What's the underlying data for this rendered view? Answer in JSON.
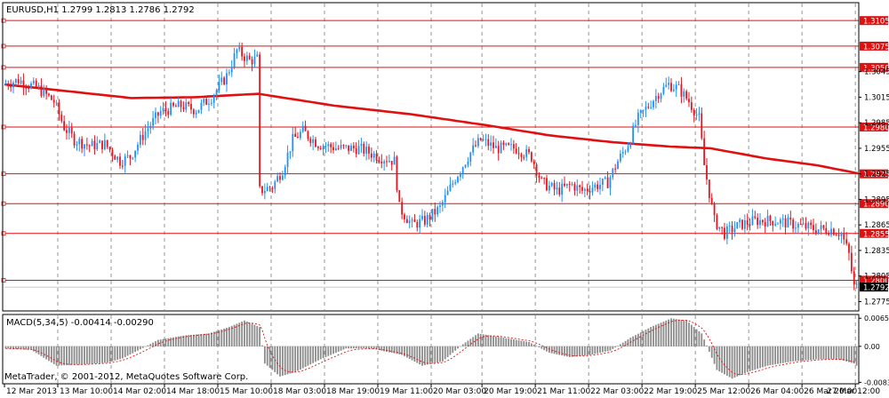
{
  "header": {
    "symbol_info": "EURUSD,H1 1.2799 1.2813 1.2786 1.2792"
  },
  "footer": {
    "copyright": "MetaTrader, © 2001-2012, MetaQuotes Software Corp."
  },
  "colors": {
    "background": "#ffffff",
    "bull_candle": "#1e90ff",
    "bear_candle": "#e8141e",
    "moving_average": "#e01010",
    "hline": "#e01010",
    "grid": "#7a7a7a",
    "macd_hist": "#8c8c8c",
    "macd_signal": "#e01010",
    "price_tag_bg": "#e01010",
    "price_tag_text": "#ffffff",
    "current_tag_bg": "#000000"
  },
  "chart_data": [
    {
      "type": "candlestick",
      "ylim": [
        1.2765,
        1.3125
      ],
      "y_ticks": [
        "1.3045",
        "1.3015",
        "1.2985",
        "1.2955",
        "1.2925",
        "1.2895",
        "1.2865",
        "1.2835",
        "1.2805",
        "1.2775"
      ],
      "x_tick_labels": [
        "12 Mar 2013",
        "13 Mar 10:00",
        "14 Mar 02:00",
        "14 Mar 18:00",
        "15 Mar 10:00",
        "18 Mar 03:00",
        "18 Mar 19:00",
        "19 Mar 11:00",
        "20 Mar 03:00",
        "20 Mar 19:00",
        "21 Mar 11:00",
        "22 Mar 03:00",
        "22 Mar 19:00",
        "25 Mar 12:00",
        "26 Mar 04:00",
        "26 Mar 20:00",
        "27 Mar 12:00"
      ],
      "horizontal_levels": [
        "1.3105",
        "1.3075",
        "1.3050",
        "1.2980",
        "1.2925",
        "1.2890",
        "1.2855",
        "1.2800"
      ],
      "current_price": "1.2792",
      "price_path": [
        [
          0,
          1.303
        ],
        [
          6,
          1.3035
        ],
        [
          14,
          1.3025
        ],
        [
          20,
          1.301
        ],
        [
          24,
          1.298
        ],
        [
          28,
          1.2965
        ],
        [
          34,
          1.2958
        ],
        [
          40,
          1.296
        ],
        [
          46,
          1.294
        ],
        [
          50,
          1.2945
        ],
        [
          56,
          1.2975
        ],
        [
          62,
          1.2998
        ],
        [
          70,
          1.3005
        ],
        [
          76,
          1.3
        ],
        [
          82,
          1.3015
        ],
        [
          88,
          1.304
        ],
        [
          92,
          1.307
        ],
        [
          97,
          1.3058
        ],
        [
          100,
          1.306
        ],
        [
          101,
          1.2905
        ],
        [
          106,
          1.291
        ],
        [
          110,
          1.293
        ],
        [
          114,
          1.2965
        ],
        [
          118,
          1.2975
        ],
        [
          124,
          1.296
        ],
        [
          132,
          1.2955
        ],
        [
          140,
          1.2955
        ],
        [
          148,
          1.2945
        ],
        [
          154,
          1.294
        ],
        [
          156,
          1.2885
        ],
        [
          161,
          1.2865
        ],
        [
          166,
          1.287
        ],
        [
          172,
          1.2885
        ],
        [
          178,
          1.292
        ],
        [
          184,
          1.295
        ],
        [
          188,
          1.2965
        ],
        [
          194,
          1.2955
        ],
        [
          202,
          1.2955
        ],
        [
          208,
          1.2945
        ],
        [
          212,
          1.2915
        ],
        [
          218,
          1.2905
        ],
        [
          224,
          1.2912
        ],
        [
          228,
          1.2905
        ],
        [
          232,
          1.291
        ],
        [
          238,
          1.2915
        ],
        [
          242,
          1.294
        ],
        [
          246,
          1.296
        ],
        [
          250,
          1.299
        ],
        [
          254,
          1.3005
        ],
        [
          258,
          1.302
        ],
        [
          262,
          1.303
        ],
        [
          266,
          1.3025
        ],
        [
          270,
          1.301
        ],
        [
          274,
          1.299
        ],
        [
          276,
          1.2935
        ],
        [
          280,
          1.287
        ],
        [
          284,
          1.2855
        ],
        [
          290,
          1.2865
        ],
        [
          296,
          1.287
        ],
        [
          304,
          1.287
        ],
        [
          312,
          1.2865
        ],
        [
          320,
          1.286
        ],
        [
          326,
          1.286
        ],
        [
          330,
          1.2855
        ],
        [
          333,
          1.283
        ],
        [
          335,
          1.2792
        ]
      ],
      "moving_average_path": [
        [
          0,
          1.303
        ],
        [
          25,
          1.3022
        ],
        [
          50,
          1.3014
        ],
        [
          75,
          1.3015
        ],
        [
          100,
          1.3019
        ],
        [
          130,
          1.3005
        ],
        [
          160,
          1.2995
        ],
        [
          190,
          1.2982
        ],
        [
          215,
          1.297
        ],
        [
          240,
          1.2962
        ],
        [
          262,
          1.2957
        ],
        [
          278,
          1.2955
        ],
        [
          300,
          1.2943
        ],
        [
          320,
          1.2935
        ],
        [
          337,
          1.2925
        ]
      ],
      "n_bars": 336
    },
    {
      "type": "histogram",
      "label": "MACD(5,34,5) -0.00414 -0.00290",
      "ylim": [
        -0.0085,
        0.0072
      ],
      "y_ticks": [
        "0.00653",
        "0.00",
        "-0.00837"
      ],
      "macd_path": [
        [
          0,
          -0.0005
        ],
        [
          10,
          -0.0008
        ],
        [
          20,
          -0.0045
        ],
        [
          30,
          -0.0042
        ],
        [
          40,
          -0.0038
        ],
        [
          46,
          -0.0028
        ],
        [
          52,
          -0.001
        ],
        [
          60,
          0.0015
        ],
        [
          70,
          0.0025
        ],
        [
          80,
          0.003
        ],
        [
          88,
          0.0045
        ],
        [
          94,
          0.006
        ],
        [
          100,
          0.0045
        ],
        [
          102,
          -0.004
        ],
        [
          108,
          -0.007
        ],
        [
          114,
          -0.006
        ],
        [
          124,
          -0.003
        ],
        [
          134,
          -0.0005
        ],
        [
          144,
          -0.0005
        ],
        [
          156,
          -0.002
        ],
        [
          164,
          -0.0045
        ],
        [
          172,
          -0.0035
        ],
        [
          180,
          0.0005
        ],
        [
          186,
          0.003
        ],
        [
          196,
          0.002
        ],
        [
          206,
          0.001
        ],
        [
          214,
          -0.0015
        ],
        [
          222,
          -0.0025
        ],
        [
          230,
          -0.002
        ],
        [
          238,
          -0.001
        ],
        [
          246,
          0.002
        ],
        [
          254,
          0.0045
        ],
        [
          262,
          0.0065
        ],
        [
          268,
          0.006
        ],
        [
          274,
          0.003
        ],
        [
          280,
          -0.0055
        ],
        [
          286,
          -0.0075
        ],
        [
          292,
          -0.006
        ],
        [
          300,
          -0.0045
        ],
        [
          310,
          -0.0035
        ],
        [
          320,
          -0.003
        ],
        [
          328,
          -0.003
        ],
        [
          334,
          -0.004
        ],
        [
          336,
          -0.005
        ]
      ]
    }
  ]
}
